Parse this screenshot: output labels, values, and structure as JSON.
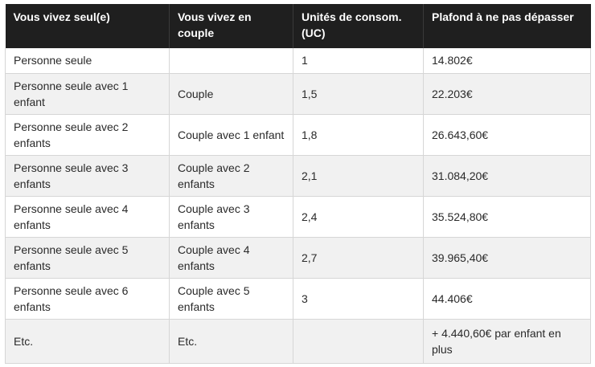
{
  "table": {
    "headers": [
      "Vous vivez seul(e)",
      "Vous vivez en couple",
      "Unités de consom. (UC)",
      "Plafond à ne pas dépasser"
    ],
    "rows": [
      [
        "Personne seule",
        "",
        "1",
        "14.802€"
      ],
      [
        "Personne seule avec 1 enfant",
        "Couple",
        "1,5",
        "22.203€"
      ],
      [
        "Personne seule avec 2 enfants",
        "Couple avec 1 enfant",
        "1,8",
        "26.643,60€"
      ],
      [
        "Personne seule avec 3 enfants",
        "Couple avec 2 enfants",
        "2,1",
        "31.084,20€"
      ],
      [
        "Personne seule avec 4 enfants",
        "Couple avec 3 enfants",
        "2,4",
        "35.524,80€"
      ],
      [
        "Personne seule avec 5 enfants",
        "Couple avec 4 enfants",
        "2,7",
        "39.965,40€"
      ],
      [
        "Personne seule avec 6 enfants",
        "Couple avec 5 enfants",
        "3",
        "44.406€"
      ],
      [
        "Etc.",
        "Etc.",
        "",
        "+ 4.440,60€ par enfant en plus"
      ]
    ]
  }
}
